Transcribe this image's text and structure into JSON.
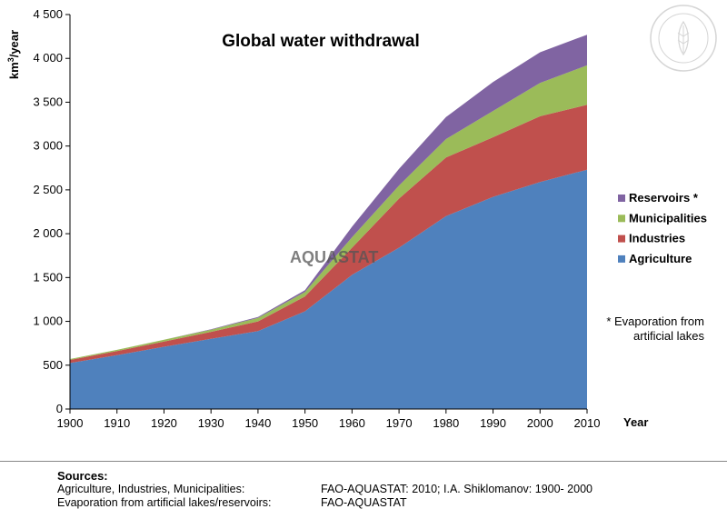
{
  "chart_data": {
    "type": "area",
    "stacked": true,
    "title": "Global water withdrawal",
    "xlabel": "Year",
    "ylabel": "km³/year",
    "ylabel_base": "km",
    "ylabel_sup": "3",
    "ylabel_tail": "/year",
    "ylim": [
      0,
      4500
    ],
    "xlim": [
      1900,
      2010
    ],
    "x": [
      1900,
      1910,
      1920,
      1930,
      1940,
      1950,
      1960,
      1970,
      1980,
      1990,
      2000,
      2010
    ],
    "x_ticks": [
      "1900",
      "1910",
      "1920",
      "1930",
      "1940",
      "1950",
      "1960",
      "1970",
      "1980",
      "1990",
      "2000",
      "2010"
    ],
    "y_ticks": [
      "0",
      "500",
      "1 000",
      "1 500",
      "2 000",
      "2 500",
      "3 000",
      "3 500",
      "4 000",
      "4 500"
    ],
    "y_tick_values": [
      0,
      500,
      1000,
      1500,
      2000,
      2500,
      3000,
      3500,
      4000,
      4500
    ],
    "series": [
      {
        "name": "Agriculture",
        "color": "#4F81BD",
        "values": [
          525,
          615,
          710,
          800,
          890,
          1115,
          1530,
          1840,
          2200,
          2420,
          2590,
          2730
        ]
      },
      {
        "name": "Industries",
        "color": "#C0504D",
        "values": [
          35,
          45,
          60,
          80,
          110,
          170,
          310,
          560,
          670,
          680,
          750,
          740
        ]
      },
      {
        "name": "Municipalities",
        "color": "#9BBB59",
        "values": [
          10,
          15,
          20,
          25,
          40,
          50,
          120,
          150,
          210,
          300,
          380,
          450
        ]
      },
      {
        "name": "Reservoirs *",
        "color": "#8064A2",
        "values": [
          0,
          0,
          0,
          5,
          10,
          20,
          120,
          190,
          250,
          330,
          350,
          350
        ]
      }
    ],
    "legend_position": "right",
    "watermark": "AQUASTAT",
    "footnote_lines": [
      "* Evaporation from",
      "artificial lakes"
    ]
  },
  "sources": {
    "heading": "Sources:",
    "rows": [
      {
        "label": "Agriculture, Industries, Municipalities:",
        "value": "FAO-AQUASTAT: 2010; I.A. Shiklomanov: 1900- 2000"
      },
      {
        "label": "Evaporation from artificial lakes/reservoirs:",
        "value": "FAO-AQUASTAT"
      }
    ]
  }
}
